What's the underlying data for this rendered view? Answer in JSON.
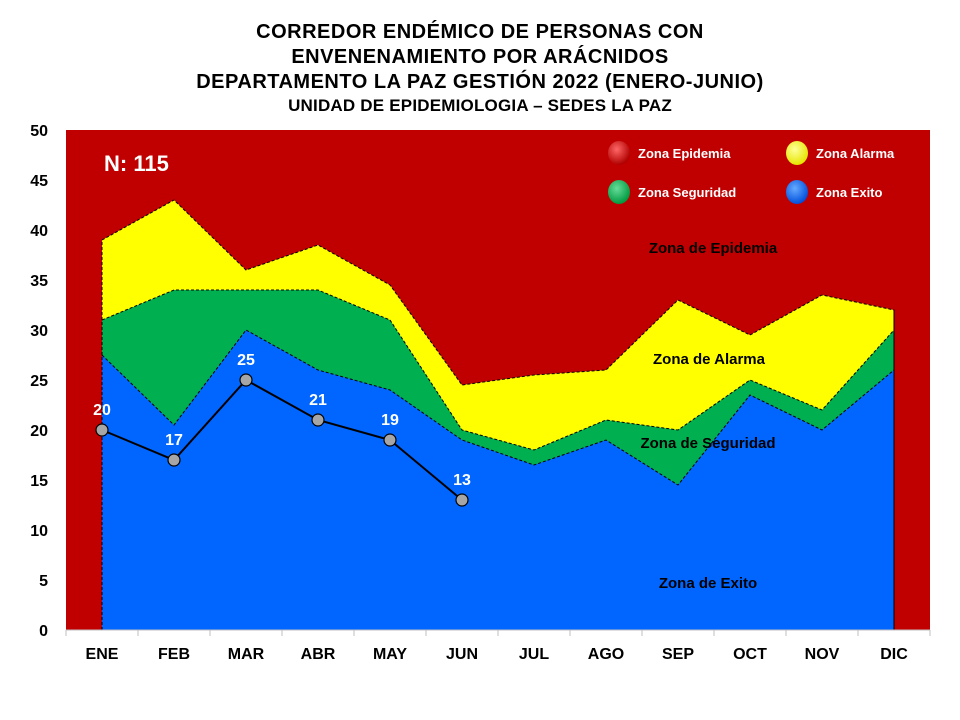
{
  "title": {
    "line1": "CORREDOR ENDÉMICO DE PERSONAS CON",
    "line2": "ENVENENAMIENTO POR ARÁCNIDOS",
    "line3": "DEPARTAMENTO  LA PAZ GESTIÓN 2022 (ENERO-JUNIO)",
    "line4": "UNIDAD DE EPIDEMIOLOGIA – SEDES LA PAZ"
  },
  "n_label": "N: 115",
  "legend": {
    "epidemia": "Zona Epidemia",
    "alarma": "Zona Alarma",
    "seguridad": "Zona Seguridad",
    "exito": "Zona Exito"
  },
  "zone_labels": {
    "epidemia": "Zona de Epidemia",
    "alarma": "Zona de Alarma",
    "seguridad": "Zona de Seguridad",
    "exito": "Zona de Exito"
  },
  "colors": {
    "epidemia": "#c00000",
    "alarma": "#ffff00",
    "seguridad": "#00b050",
    "exito": "#0066ff",
    "line": "#000000",
    "marker": "#a6a6a6"
  },
  "chart_data": {
    "type": "area",
    "categories": [
      "ENE",
      "FEB",
      "MAR",
      "ABR",
      "MAY",
      "JUN",
      "JUL",
      "AGO",
      "SEP",
      "OCT",
      "NOV",
      "DIC"
    ],
    "ylim": [
      0,
      50
    ],
    "yticks": [
      0,
      5,
      10,
      15,
      20,
      25,
      30,
      35,
      40,
      45,
      50
    ],
    "grid": false,
    "legend_position": "top-right",
    "series": [
      {
        "name": "Zona Exito",
        "values": [
          27.5,
          20.5,
          30,
          26,
          24,
          19,
          16.5,
          19,
          14.5,
          23.5,
          20,
          26
        ]
      },
      {
        "name": "Zona Seguridad",
        "values": [
          31,
          34,
          34,
          34,
          31,
          20,
          18,
          21,
          20,
          25,
          22,
          30
        ]
      },
      {
        "name": "Zona Alarma",
        "values": [
          39,
          43,
          36,
          38.5,
          34.5,
          24.5,
          25.5,
          26,
          33,
          29.5,
          33.5,
          32
        ]
      },
      {
        "name": "Zona Epidemia",
        "values": [
          50,
          50,
          50,
          50,
          50,
          50,
          50,
          50,
          50,
          50,
          50,
          50
        ]
      }
    ],
    "cases": {
      "name": "2022",
      "categories": [
        "ENE",
        "FEB",
        "MAR",
        "ABR",
        "MAY",
        "JUN"
      ],
      "values": [
        20,
        17,
        25,
        21,
        19,
        13
      ]
    }
  }
}
